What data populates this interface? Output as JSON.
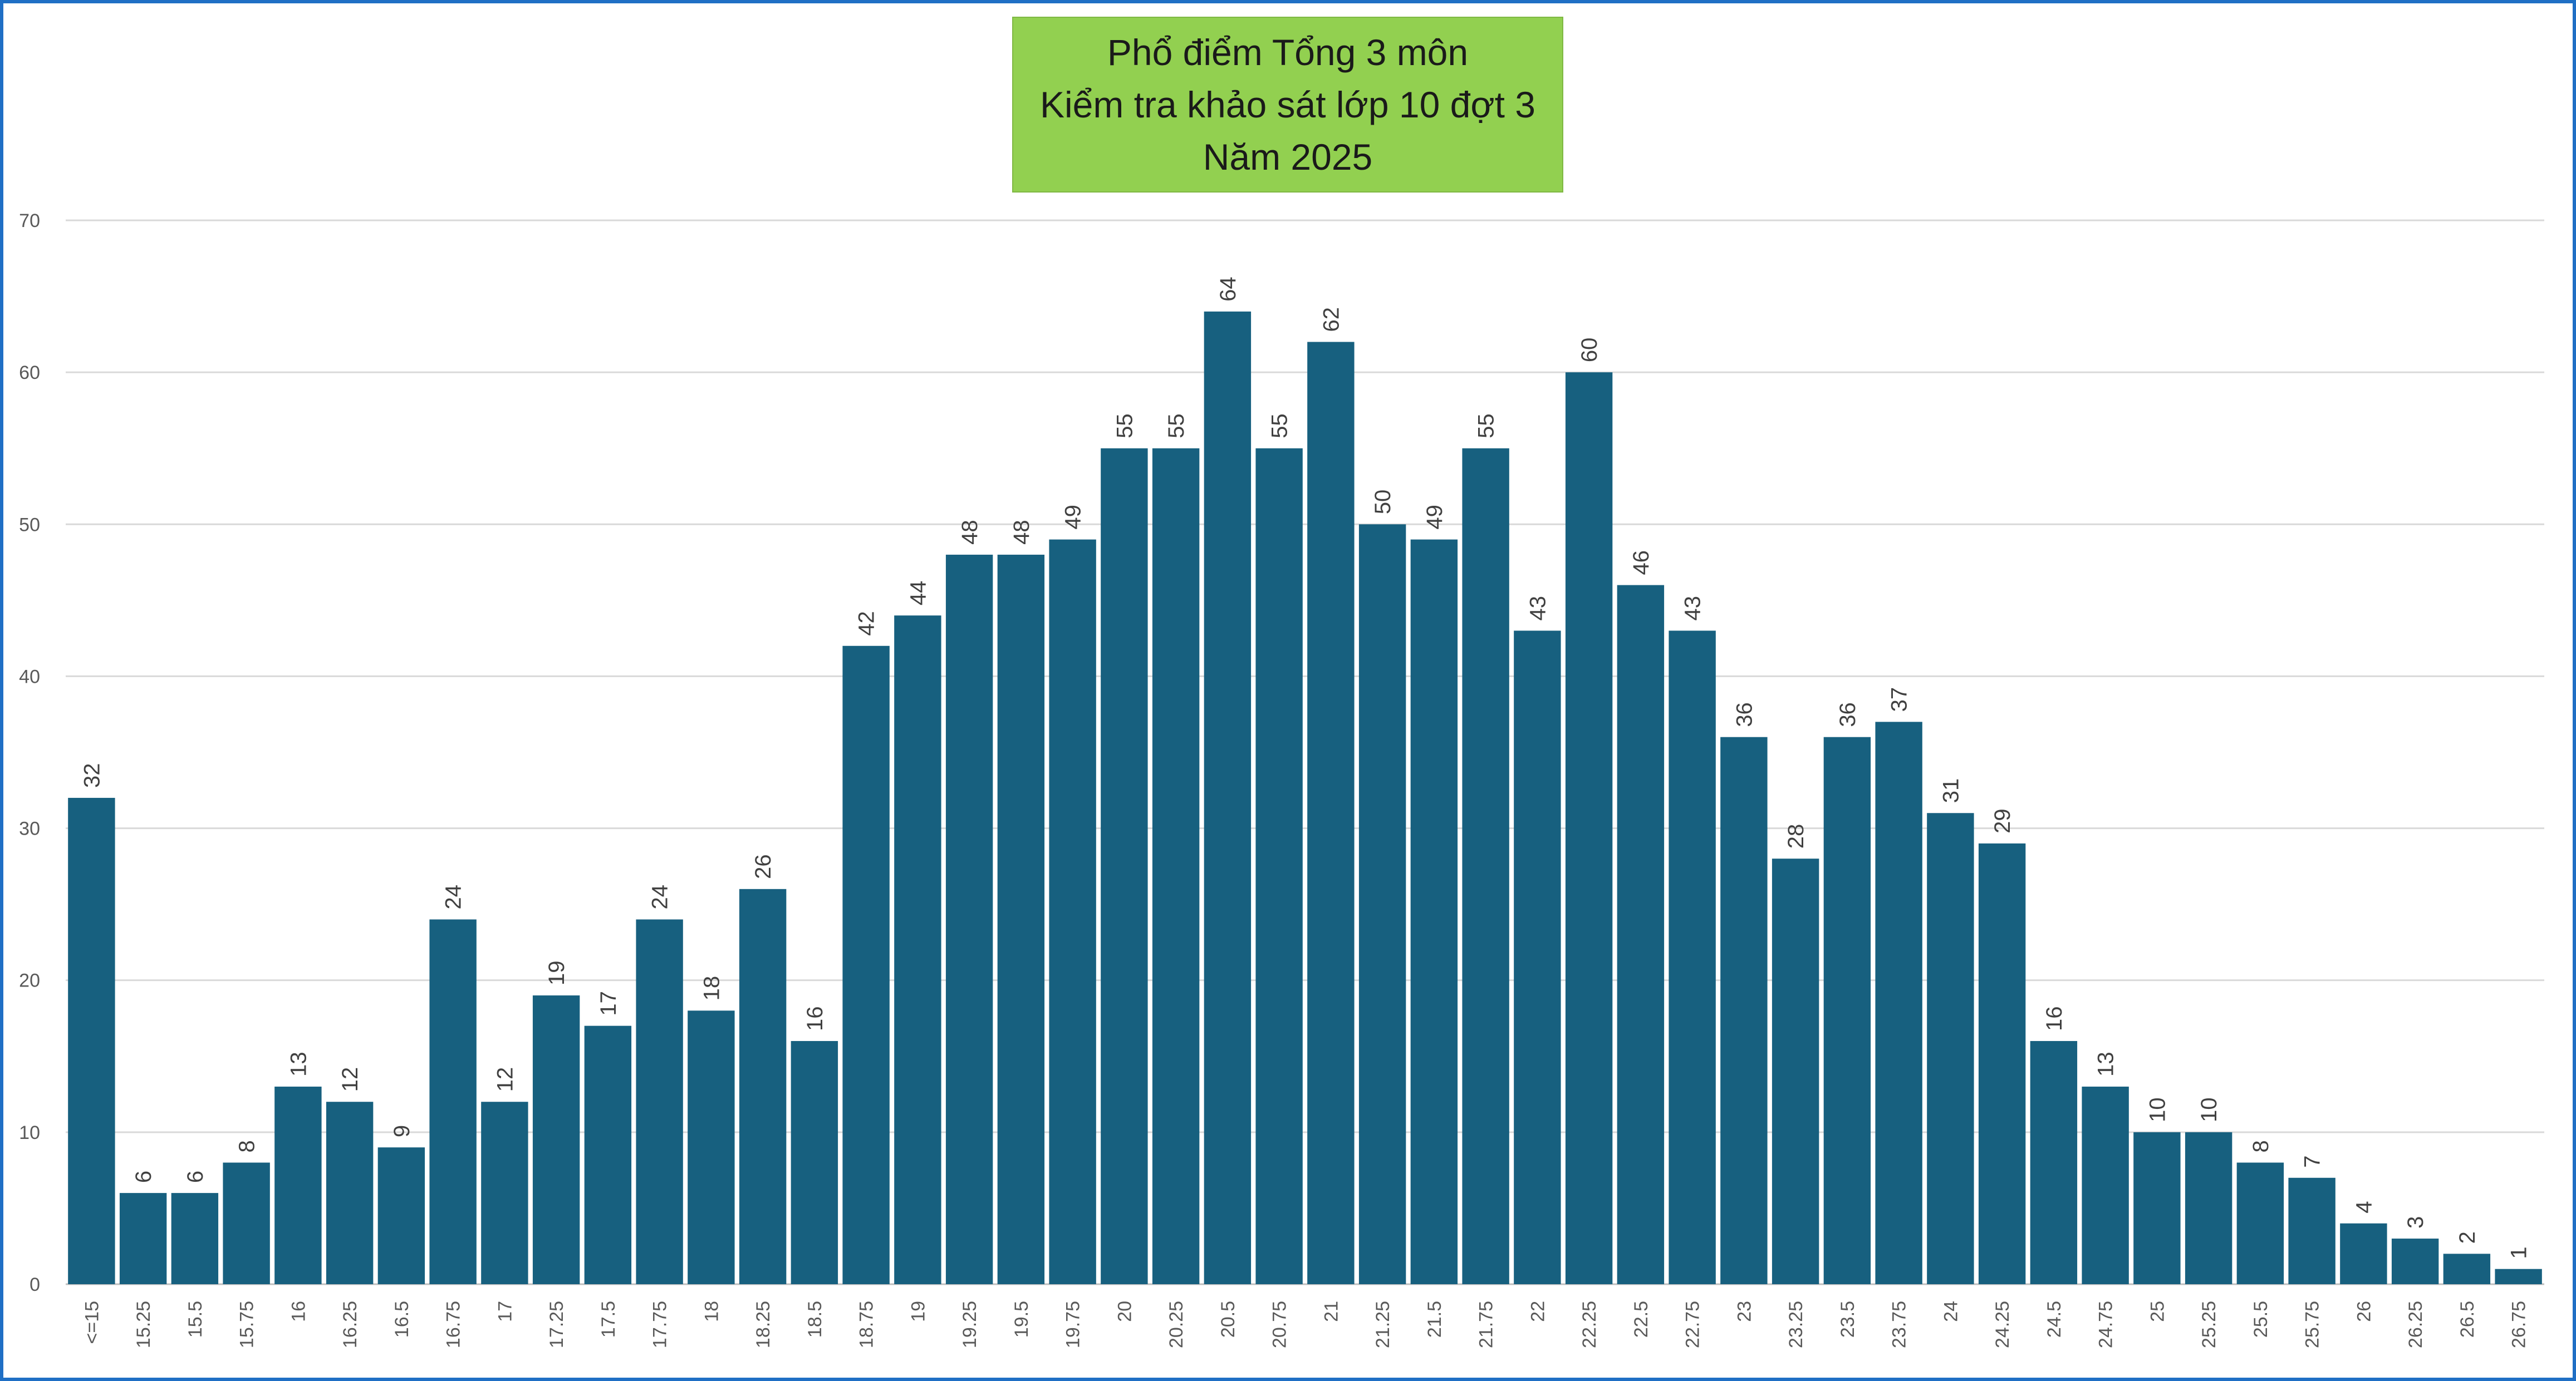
{
  "chart_data": {
    "type": "bar",
    "title": [
      "Phổ điểm Tổng 3 môn",
      "Kiểm tra khảo sát lớp 10 đợt 3",
      "Năm 2025"
    ],
    "categories": [
      "<=15",
      "15.25",
      "15.5",
      "15.75",
      "16",
      "16.25",
      "16.5",
      "16.75",
      "17",
      "17.25",
      "17.5",
      "17.75",
      "18",
      "18.25",
      "18.5",
      "18.75",
      "19",
      "19.25",
      "19.5",
      "19.75",
      "20",
      "20.25",
      "20.5",
      "20.75",
      "21",
      "21.25",
      "21.5",
      "21.75",
      "22",
      "22.25",
      "22.5",
      "22.75",
      "23",
      "23.25",
      "23.5",
      "23.75",
      "24",
      "24.25",
      "24.5",
      "24.75",
      "25",
      "25.25",
      "25.5",
      "25.75",
      "26",
      "26.25",
      "26.5",
      "26.75"
    ],
    "values": [
      32,
      6,
      6,
      8,
      13,
      12,
      9,
      24,
      12,
      19,
      17,
      24,
      18,
      26,
      16,
      42,
      44,
      48,
      48,
      49,
      55,
      55,
      64,
      55,
      62,
      50,
      49,
      55,
      43,
      60,
      46,
      43,
      36,
      28,
      36,
      37,
      31,
      29,
      16,
      13,
      10,
      10,
      8,
      7,
      4,
      3,
      2,
      1
    ],
    "ylim": [
      0,
      70
    ],
    "yticks": [
      0,
      10,
      20,
      30,
      40,
      50,
      60,
      70
    ],
    "grid": true,
    "bar_color": "#17607f",
    "grid_color": "#d9d9d9",
    "title_bg": "#92d050",
    "frame_color": "#1f6fc5"
  }
}
